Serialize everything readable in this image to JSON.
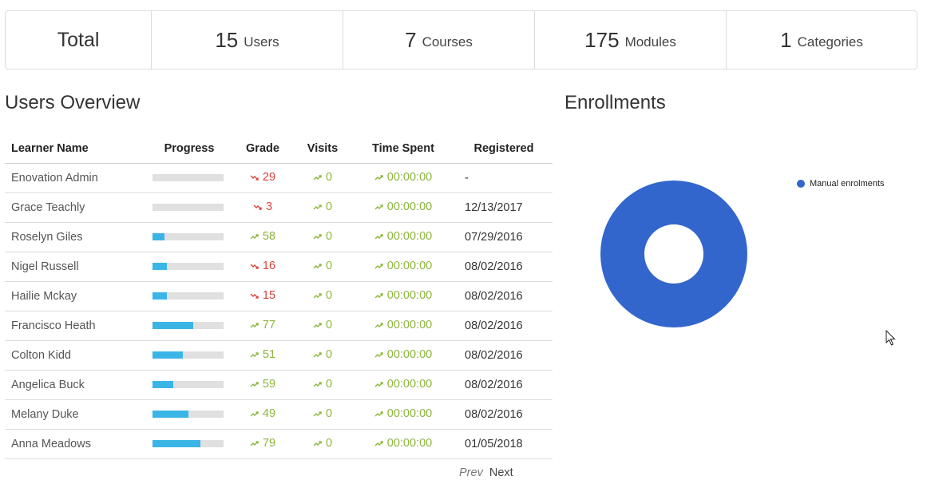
{
  "stats": {
    "total_label": "Total",
    "items": [
      {
        "value": "15",
        "label": "Users"
      },
      {
        "value": "7",
        "label": "Courses"
      },
      {
        "value": "175",
        "label": "Modules"
      },
      {
        "value": "1",
        "label": "Categories"
      }
    ]
  },
  "users_overview": {
    "title": "Users Overview",
    "columns": [
      "Learner Name",
      "Progress",
      "Grade",
      "Visits",
      "Time Spent",
      "Registered"
    ],
    "rows": [
      {
        "name": "Enovation Admin",
        "progress": 0,
        "grade": "29",
        "grade_trend": "down",
        "visits": "0",
        "time": "00:00:00",
        "registered": "-"
      },
      {
        "name": "Grace Teachly",
        "progress": 0,
        "grade": "3",
        "grade_trend": "down",
        "visits": "0",
        "time": "00:00:00",
        "registered": "12/13/2017"
      },
      {
        "name": "Roselyn Giles",
        "progress": 17,
        "grade": "58",
        "grade_trend": "up",
        "visits": "0",
        "time": "00:00:00",
        "registered": "07/29/2016"
      },
      {
        "name": "Nigel Russell",
        "progress": 20,
        "grade": "16",
        "grade_trend": "down",
        "visits": "0",
        "time": "00:00:00",
        "registered": "08/02/2016"
      },
      {
        "name": "Hailie Mckay",
        "progress": 20,
        "grade": "15",
        "grade_trend": "down",
        "visits": "0",
        "time": "00:00:00",
        "registered": "08/02/2016"
      },
      {
        "name": "Francisco Heath",
        "progress": 57,
        "grade": "77",
        "grade_trend": "up",
        "visits": "0",
        "time": "00:00:00",
        "registered": "08/02/2016"
      },
      {
        "name": "Colton Kidd",
        "progress": 43,
        "grade": "51",
        "grade_trend": "up",
        "visits": "0",
        "time": "00:00:00",
        "registered": "08/02/2016"
      },
      {
        "name": "Angelica Buck",
        "progress": 29,
        "grade": "59",
        "grade_trend": "up",
        "visits": "0",
        "time": "00:00:00",
        "registered": "08/02/2016"
      },
      {
        "name": "Melany Duke",
        "progress": 50,
        "grade": "49",
        "grade_trend": "up",
        "visits": "0",
        "time": "00:00:00",
        "registered": "08/02/2016"
      },
      {
        "name": "Anna Meadows",
        "progress": 67,
        "grade": "79",
        "grade_trend": "up",
        "visits": "0",
        "time": "00:00:00",
        "registered": "01/05/2018"
      }
    ],
    "pager": {
      "prev": "Prev",
      "next": "Next"
    }
  },
  "enrollments": {
    "title": "Enrollments"
  },
  "chart_data": {
    "type": "pie",
    "title": "",
    "categories": [
      "Manual enrolments"
    ],
    "values": [
      100
    ],
    "colors": [
      "#3366cc"
    ],
    "legend_position": "right"
  },
  "colors": {
    "progress_fill": "#3bb5e6",
    "trend_up": "#8db53c",
    "trend_down": "#d9413a",
    "donut": "#3366cc"
  }
}
